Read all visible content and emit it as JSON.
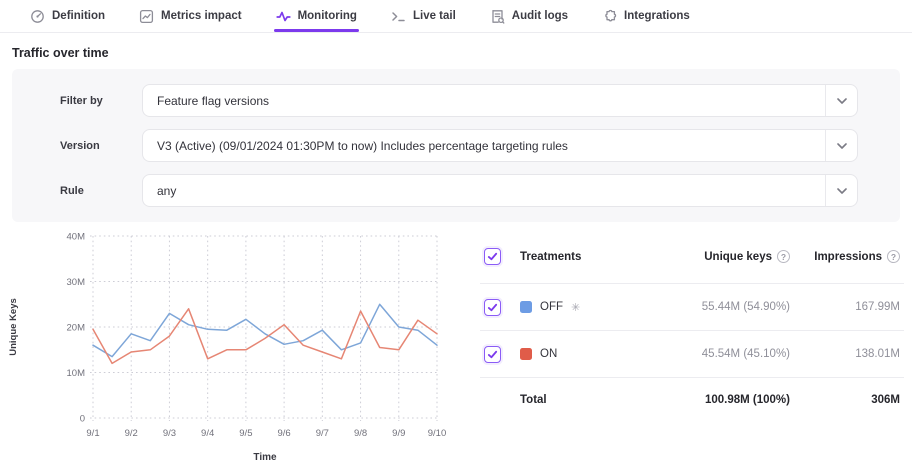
{
  "tabs": [
    {
      "label": "Definition",
      "icon": "definition-icon",
      "active": false
    },
    {
      "label": "Metrics impact",
      "icon": "metrics-impact-icon",
      "active": false
    },
    {
      "label": "Monitoring",
      "icon": "monitoring-icon",
      "active": true
    },
    {
      "label": "Live tail",
      "icon": "live-tail-icon",
      "active": false
    },
    {
      "label": "Audit logs",
      "icon": "audit-logs-icon",
      "active": false
    },
    {
      "label": "Integrations",
      "icon": "integrations-icon",
      "active": false
    }
  ],
  "page": {
    "title": "Traffic over time"
  },
  "filters": {
    "rows": [
      {
        "label": "Filter by",
        "value": "Feature flag versions"
      },
      {
        "label": "Version",
        "value": "V3 (Active) (09/01/2024 01:30PM to now) Includes percentage targeting rules"
      },
      {
        "label": "Rule",
        "value": "any"
      }
    ]
  },
  "chart_data": {
    "type": "line",
    "xlabel": "Time",
    "ylabel": "Unique Keys",
    "x_ticks": [
      "9/1",
      "9/2",
      "9/3",
      "9/4",
      "9/5",
      "9/6",
      "9/7",
      "9/8",
      "9/9",
      "9/10"
    ],
    "y_ticks": [
      "0",
      "10M",
      "20M",
      "30M",
      "40M"
    ],
    "ylim": [
      0,
      40
    ],
    "grid": "dotted",
    "points_per_day": 2,
    "unit": "millions",
    "series": [
      {
        "name": "OFF",
        "color": "#7ea6d8",
        "values": [
          16,
          13.5,
          18.5,
          17,
          23,
          20.5,
          19.5,
          19.3,
          21.7,
          18.5,
          16.2,
          17,
          19.3,
          15,
          16.5,
          25,
          20,
          19.3,
          16
        ]
      },
      {
        "name": "ON",
        "color": "#e68674",
        "values": [
          19.5,
          12,
          14.5,
          15,
          18,
          24,
          13,
          15,
          15,
          17.5,
          20.5,
          16,
          14.5,
          13,
          23.5,
          15.5,
          15,
          21.5,
          18.5
        ]
      }
    ]
  },
  "table": {
    "header": {
      "treatments": "Treatments",
      "unique_keys": "Unique keys",
      "impressions": "Impressions"
    },
    "rows": [
      {
        "name": "OFF",
        "swatch": "#6d9ce4",
        "default_marker": "✳",
        "checked": true,
        "unique_keys": "55.44M (54.90%)",
        "impressions": "167.99M"
      },
      {
        "name": "ON",
        "swatch": "#e05c49",
        "default_marker": "",
        "checked": true,
        "unique_keys": "45.54M (45.10%)",
        "impressions": "138.01M"
      }
    ],
    "total": {
      "label": "Total",
      "unique_keys": "100.98M (100%)",
      "impressions": "306M"
    }
  },
  "colors": {
    "accent": "#7c3aed",
    "off_line": "#7ea6d8",
    "on_line": "#e68674",
    "off_swatch": "#6d9ce4",
    "on_swatch": "#e05c49",
    "grid": "#cdcdd6",
    "panel_bg": "#f7f7f9"
  }
}
